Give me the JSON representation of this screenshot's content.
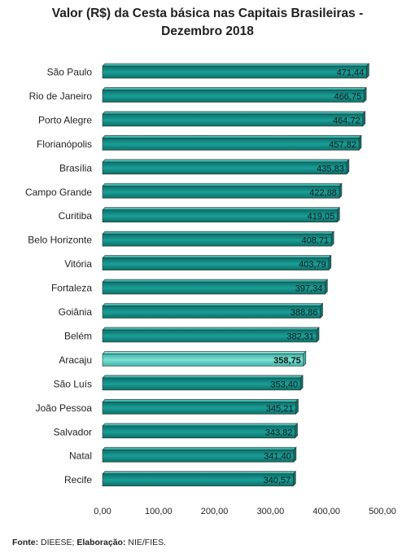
{
  "chart_data": {
    "type": "bar",
    "orientation": "horizontal",
    "title_lines": [
      "Valor (R$) da Cesta básica nas Capitais Brasileiras -",
      "Dezembro 2018"
    ],
    "categories": [
      "São Paulo",
      "Rio de Janeiro",
      "Porto Alegre",
      "Florianópolis",
      "Brasília",
      "Campo Grande",
      "Curitiba",
      "Belo Horizonte",
      "Vitória",
      "Fortaleza",
      "Goiânia",
      "Belém",
      "Aracaju",
      "São Luís",
      "João Pessoa",
      "Salvador",
      "Natal",
      "Recife"
    ],
    "values": [
      471.44,
      466.75,
      464.72,
      457.82,
      435.83,
      422.88,
      419.05,
      408.71,
      403.79,
      397.34,
      388.86,
      382.31,
      358.75,
      353.4,
      345.21,
      343.82,
      341.4,
      340.57
    ],
    "value_labels": [
      "471,44",
      "466,75",
      "464,72",
      "457,82",
      "435,83",
      "422,88",
      "419,05",
      "408,71",
      "403,79",
      "397,34",
      "388,86",
      "382,31",
      "358,75",
      "353,40",
      "345,21",
      "343,82",
      "341,40",
      "340,57"
    ],
    "highlight_category": "Aracaju",
    "xlim": [
      0,
      500
    ],
    "xticks": [
      0,
      100,
      200,
      300,
      400,
      500
    ],
    "xtick_labels": [
      "0,00",
      "100,00",
      "200,00",
      "300,00",
      "400,00",
      "500,00"
    ],
    "grid": false,
    "colors": {
      "bar": "#1a9e96",
      "bar_dark": "#0b6f69",
      "highlight": "#7fe0d2",
      "highlight_dark": "#3cb3a6"
    }
  },
  "source": {
    "fonte_label": "Fonte:",
    "fonte_text": " DIEESE; ",
    "elab_label": "Elaboração:",
    "elab_text": " NIE/FIES."
  }
}
